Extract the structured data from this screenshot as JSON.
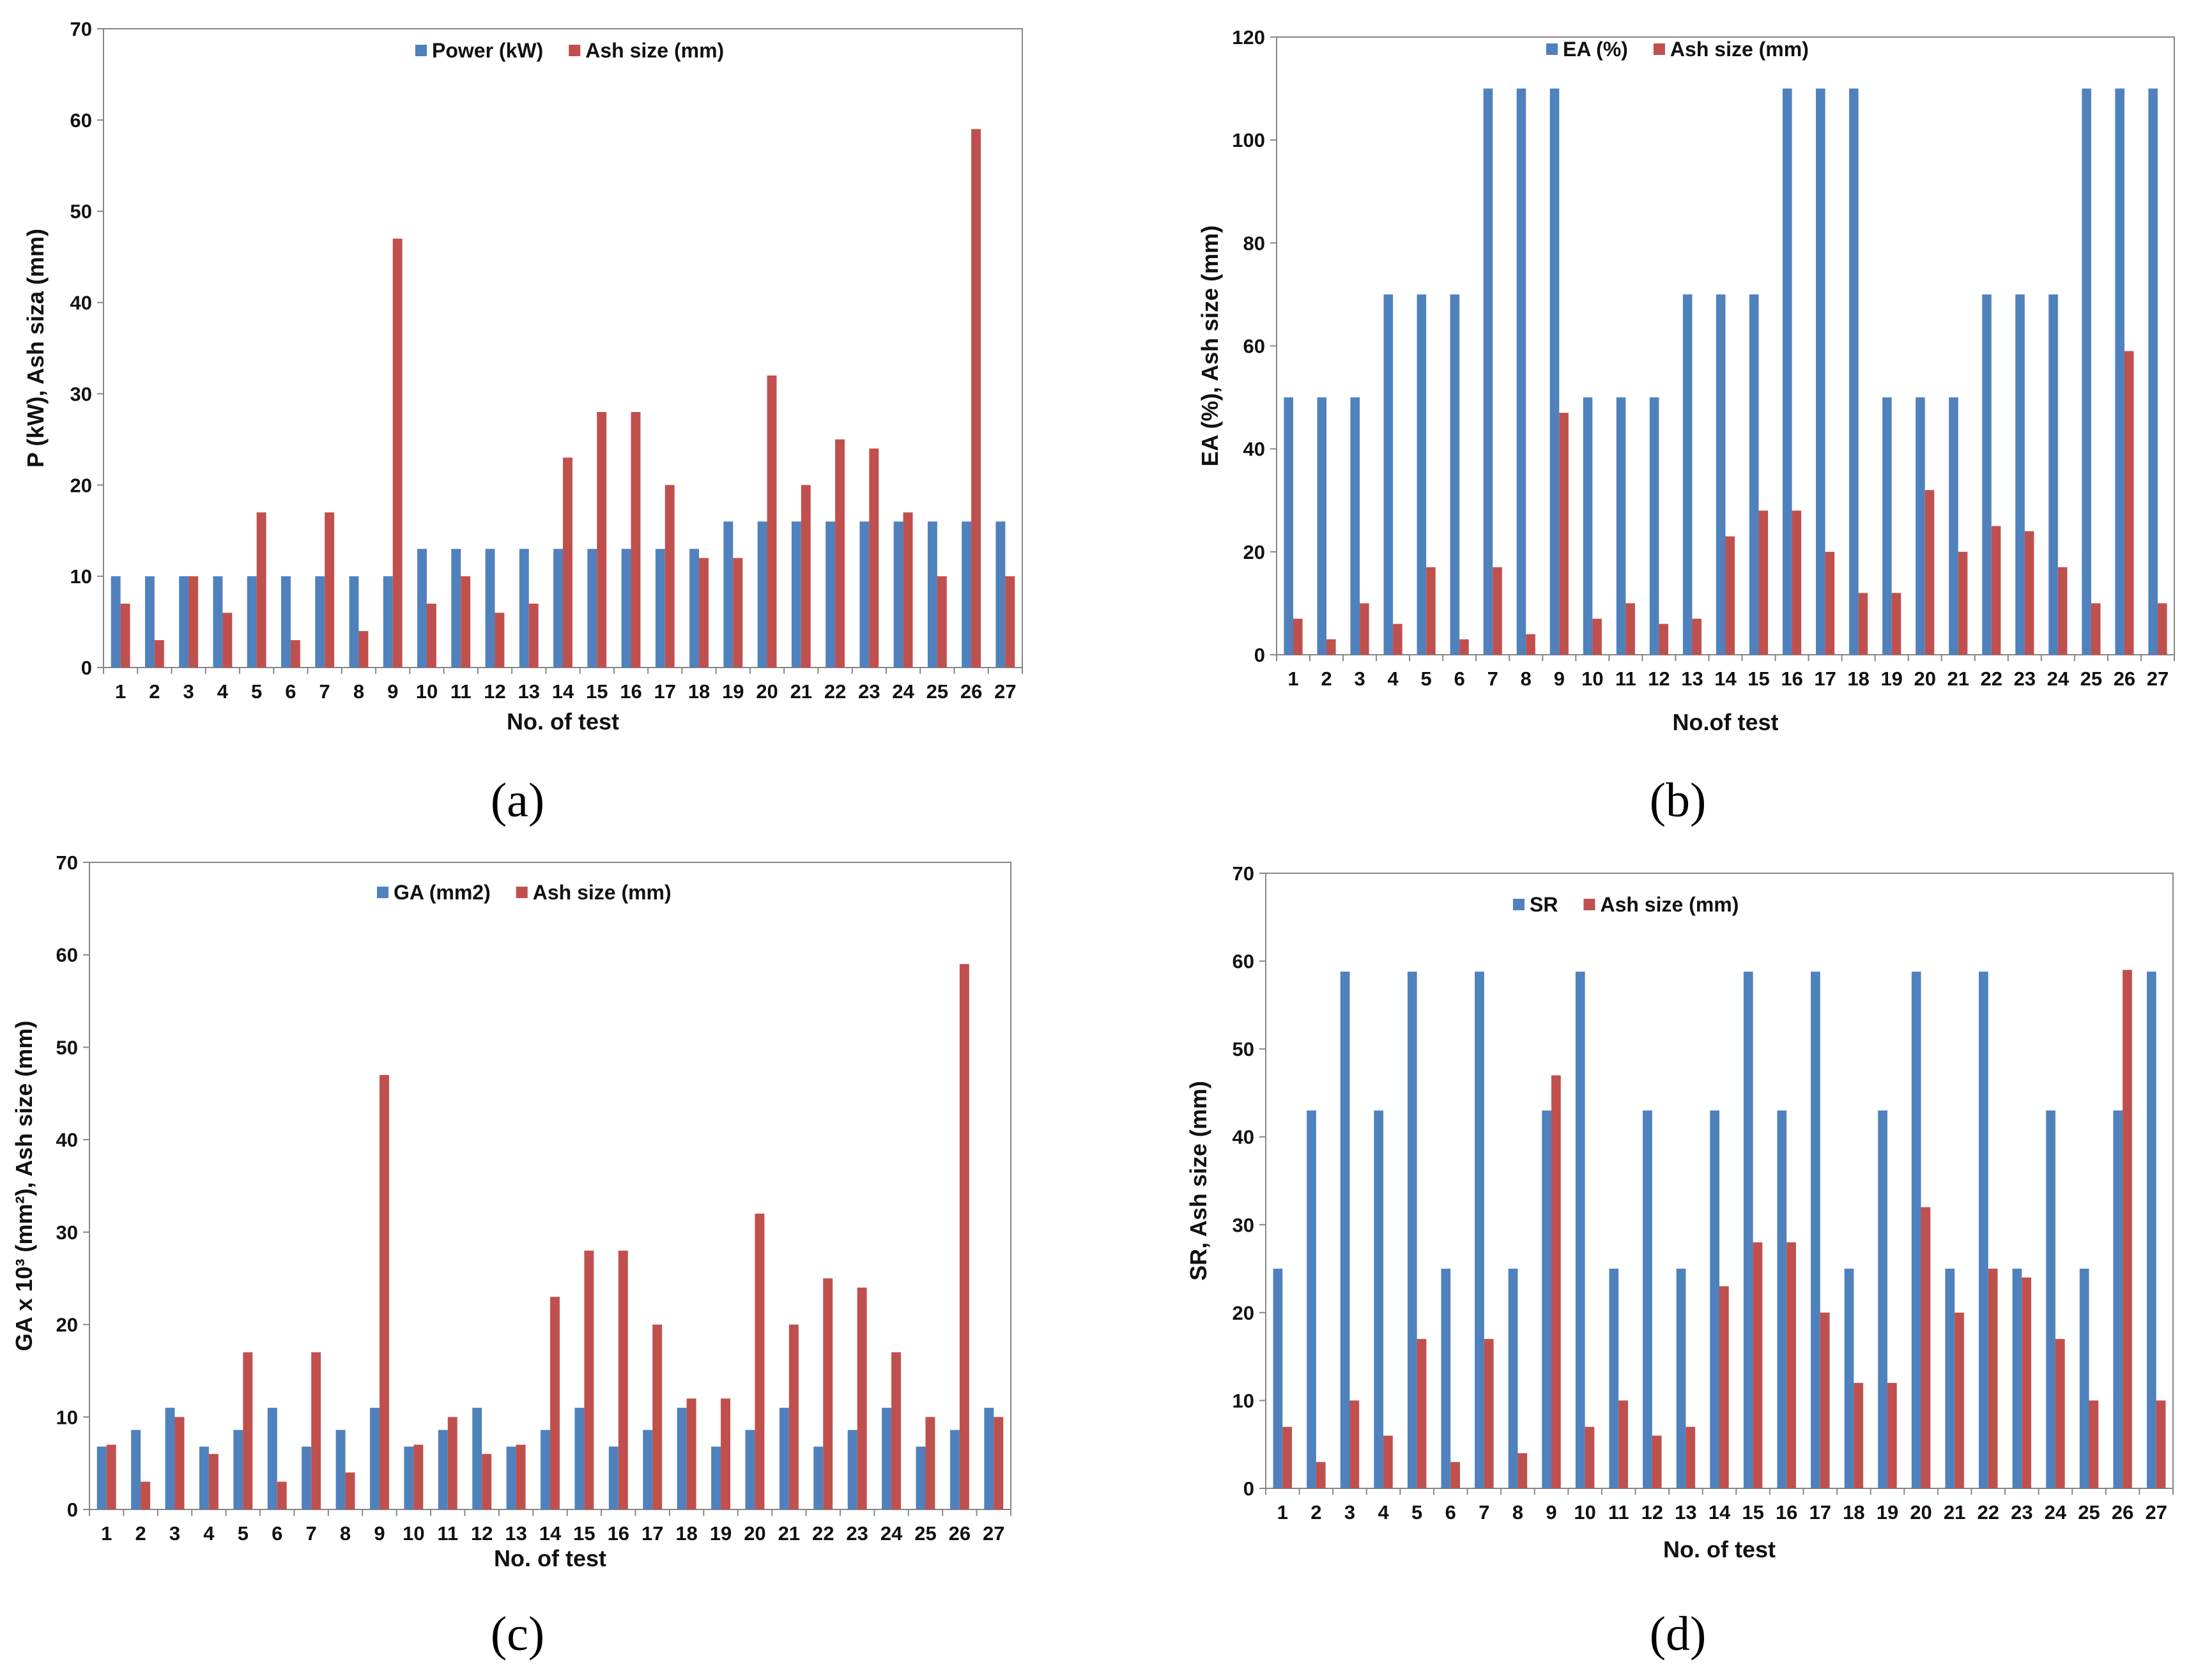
{
  "colors": {
    "series1": "#4F81BD",
    "series2": "#C0504D",
    "axis": "#868686"
  },
  "charts": [
    {
      "id": "a",
      "caption": "(a)"
    },
    {
      "id": "b",
      "caption": "(b)"
    },
    {
      "id": "c",
      "caption": "(c)"
    },
    {
      "id": "d",
      "caption": "(d)"
    }
  ],
  "chart_data": [
    {
      "panel": "(a)",
      "type": "bar",
      "categories": [
        "1",
        "2",
        "3",
        "4",
        "5",
        "6",
        "7",
        "8",
        "9",
        "10",
        "11",
        "12",
        "13",
        "14",
        "15",
        "16",
        "17",
        "18",
        "19",
        "20",
        "21",
        "22",
        "23",
        "24",
        "25",
        "26",
        "27"
      ],
      "series": [
        {
          "name": "Power (kW)",
          "values": [
            10,
            10,
            10,
            10,
            10,
            10,
            10,
            10,
            10,
            13,
            13,
            13,
            13,
            13,
            13,
            13,
            13,
            13,
            16,
            16,
            16,
            16,
            16,
            16,
            16,
            16,
            16
          ]
        },
        {
          "name": "Ash size (mm)",
          "values": [
            7,
            3,
            10,
            6,
            17,
            3,
            17,
            4,
            47,
            7,
            10,
            6,
            7,
            23,
            28,
            28,
            20,
            12,
            12,
            32,
            20,
            25,
            24,
            17,
            10,
            59,
            10
          ]
        }
      ],
      "xlabel": "No. of test",
      "ylabel": "P (kW), Ash siza (mm)",
      "ylim": [
        0,
        70
      ],
      "yticks": [
        0,
        10,
        20,
        30,
        40,
        50,
        60,
        70
      ],
      "legend": "top-center"
    },
    {
      "panel": "(b)",
      "type": "bar",
      "categories": [
        "1",
        "2",
        "3",
        "4",
        "5",
        "6",
        "7",
        "8",
        "9",
        "10",
        "11",
        "12",
        "13",
        "14",
        "15",
        "16",
        "17",
        "18",
        "19",
        "20",
        "21",
        "22",
        "23",
        "24",
        "25",
        "26",
        "27"
      ],
      "series": [
        {
          "name": "EA (%)",
          "values": [
            50,
            50,
            50,
            70,
            70,
            70,
            110,
            110,
            110,
            50,
            50,
            50,
            70,
            70,
            70,
            110,
            110,
            110,
            50,
            50,
            50,
            70,
            70,
            70,
            110,
            110,
            110
          ]
        },
        {
          "name": "Ash size (mm)",
          "values": [
            7,
            3,
            10,
            6,
            17,
            3,
            17,
            4,
            47,
            7,
            10,
            6,
            7,
            23,
            28,
            28,
            20,
            12,
            12,
            32,
            20,
            25,
            24,
            17,
            10,
            59,
            10
          ]
        }
      ],
      "xlabel": "No.of test",
      "ylabel": "EA (%), Ash size (mm)",
      "ylim": [
        0,
        120
      ],
      "yticks": [
        0,
        20,
        40,
        60,
        80,
        100,
        120
      ],
      "legend": "top-center"
    },
    {
      "panel": "(c)",
      "type": "bar",
      "categories": [
        "1",
        "2",
        "3",
        "4",
        "5",
        "6",
        "7",
        "8",
        "9",
        "10",
        "11",
        "12",
        "13",
        "14",
        "15",
        "16",
        "17",
        "18",
        "19",
        "20",
        "21",
        "22",
        "23",
        "24",
        "25",
        "26",
        "27"
      ],
      "series": [
        {
          "name": "GA (mm2)",
          "values": [
            6.8,
            8.6,
            11,
            6.8,
            8.6,
            11,
            6.8,
            8.6,
            11,
            6.8,
            8.6,
            11,
            6.8,
            8.6,
            11,
            6.8,
            8.6,
            11,
            6.8,
            8.6,
            11,
            6.8,
            8.6,
            11,
            6.8,
            8.6,
            11
          ]
        },
        {
          "name": "Ash size (mm)",
          "values": [
            7,
            3,
            10,
            6,
            17,
            3,
            17,
            4,
            47,
            7,
            10,
            6,
            7,
            23,
            28,
            28,
            20,
            12,
            12,
            32,
            20,
            25,
            24,
            17,
            10,
            59,
            10
          ]
        }
      ],
      "xlabel": "No. of test",
      "ylabel": "GA x 10³ (mm²), Ash size (mm)",
      "ylim": [
        0,
        70
      ],
      "yticks": [
        0,
        10,
        20,
        30,
        40,
        50,
        60,
        70
      ],
      "legend": "top-center"
    },
    {
      "panel": "(d)",
      "type": "bar",
      "categories": [
        "1",
        "2",
        "3",
        "4",
        "5",
        "6",
        "7",
        "8",
        "9",
        "10",
        "11",
        "12",
        "13",
        "14",
        "15",
        "16",
        "17",
        "18",
        "19",
        "20",
        "21",
        "22",
        "23",
        "24",
        "25",
        "26",
        "27"
      ],
      "series": [
        {
          "name": "SR",
          "values": [
            25,
            43,
            58.8,
            43,
            58.8,
            25,
            58.8,
            25,
            43,
            58.8,
            25,
            43,
            25,
            43,
            58.8,
            43,
            58.8,
            25,
            43,
            58.8,
            25,
            58.8,
            25,
            43,
            25,
            43,
            58.8
          ]
        },
        {
          "name": "Ash size (mm)",
          "values": [
            7,
            3,
            10,
            6,
            17,
            3,
            17,
            4,
            47,
            7,
            10,
            6,
            7,
            23,
            28,
            28,
            20,
            12,
            12,
            32,
            20,
            25,
            24,
            17,
            10,
            59,
            10
          ]
        }
      ],
      "xlabel": "No. of test",
      "ylabel": "SR, Ash size (mm)",
      "ylim": [
        0,
        70
      ],
      "yticks": [
        0,
        10,
        20,
        30,
        40,
        50,
        60,
        70
      ],
      "legend": "top-left"
    }
  ]
}
